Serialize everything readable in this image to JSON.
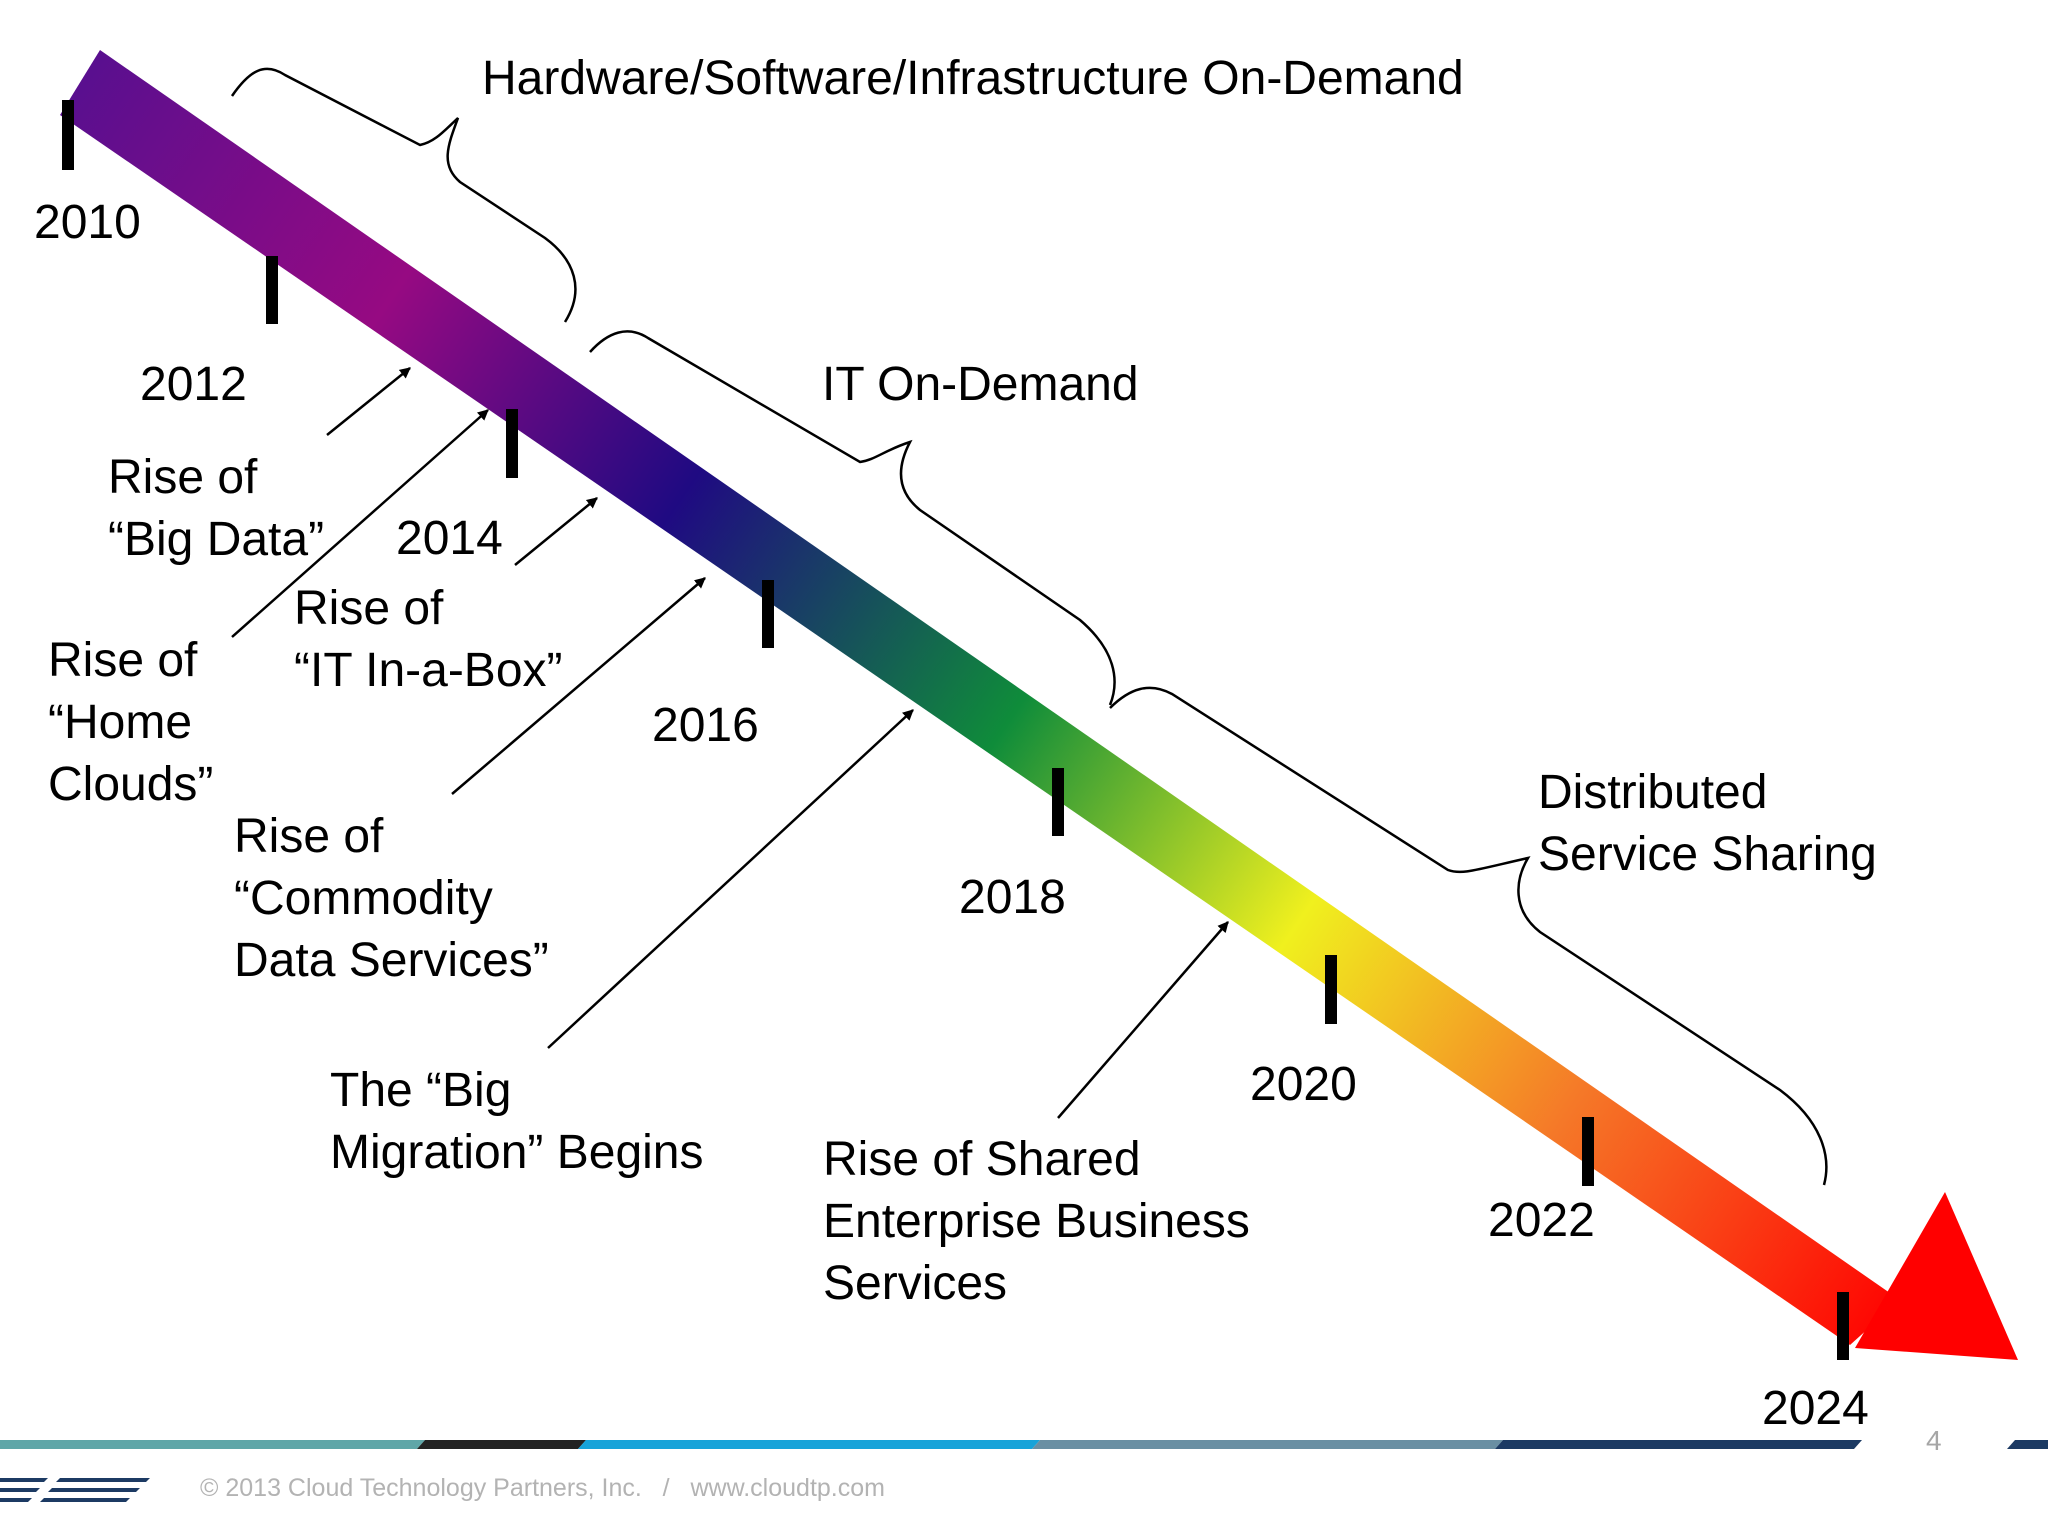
{
  "timeline": {
    "years": [
      "2010",
      "2012",
      "2014",
      "2016",
      "2018",
      "2020",
      "2022",
      "2024"
    ],
    "eras": [
      {
        "label": "Hardware/Software/Infrastructure On-Demand"
      },
      {
        "label": "IT On-Demand"
      },
      {
        "lines": [
          "Distributed",
          "Service Sharing"
        ]
      }
    ],
    "milestones": [
      {
        "lines": [
          "Rise of",
          "“Big Data”"
        ]
      },
      {
        "lines": [
          "Rise of",
          "“Home",
          "Clouds”"
        ]
      },
      {
        "lines": [
          "Rise of",
          "“IT In-a-Box”"
        ]
      },
      {
        "lines": [
          "Rise of",
          "“Commodity",
          "Data Services”"
        ]
      },
      {
        "lines": [
          "The “Big",
          "Migration” Begins"
        ]
      },
      {
        "lines": [
          "Rise of Shared",
          "Enterprise Business",
          "Services"
        ]
      }
    ],
    "arrow_colors": [
      "#5a0f8f",
      "#960a82",
      "#1f0a82",
      "#0f8c3a",
      "#f0f01e",
      "#f57828",
      "#ff0000"
    ]
  },
  "footer": {
    "copyright": "© 2013 Cloud Technology Partners, Inc.   /   www.cloudtp.com",
    "page_number": "4",
    "bar_colors": [
      "#5fa6a8",
      "#222222",
      "#17a3d9",
      "#6a8fa3",
      "#1c3a63"
    ]
  }
}
